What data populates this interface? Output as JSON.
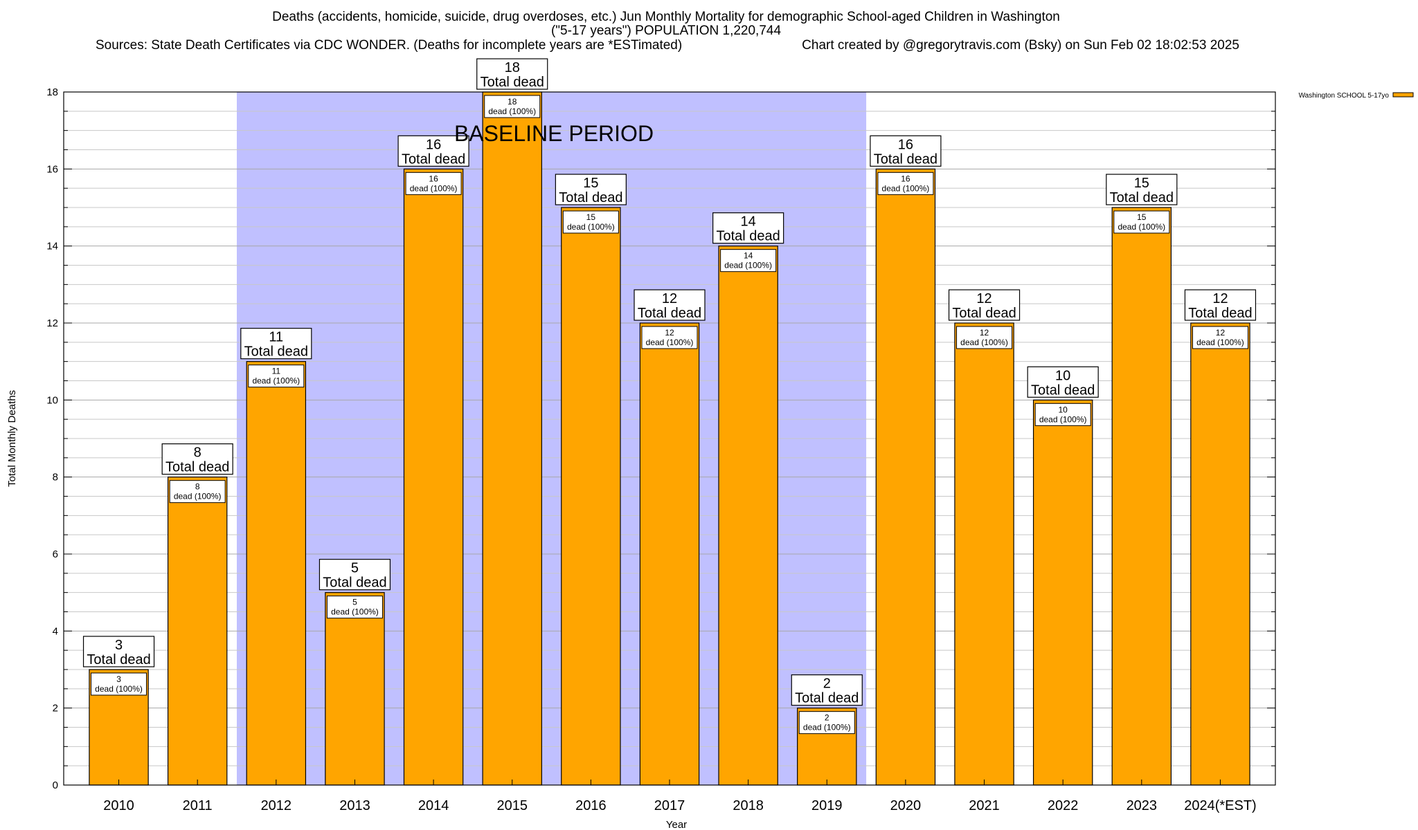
{
  "chart_data": {
    "type": "bar",
    "title_lines": [
      "Deaths (accidents, homicide, suicide, drug overdoses, etc.) Jun Monthly Mortality for demographic School-aged Children in Washington",
      "(\"5-17 years\") POPULATION 1,220,744"
    ],
    "sources": "Sources: State Death Certificates via CDC WONDER. (Deaths for incomplete years are *ESTimated)",
    "credit": "Chart created by @gregorytravis.com (Bsky) on Sun Feb 02 18:02:53 2025",
    "xlabel": "Year",
    "ylabel": "Total Monthly Deaths",
    "ylim": [
      0,
      18
    ],
    "yticks": [
      "0",
      "2",
      "4",
      "6",
      "8",
      "10",
      "12",
      "14",
      "16",
      "18"
    ],
    "categories": [
      "2010",
      "2011",
      "2012",
      "2013",
      "2014",
      "2015",
      "2016",
      "2017",
      "2018",
      "2019",
      "2020",
      "2021",
      "2022",
      "2023",
      "2024(*EST)"
    ],
    "series": [
      {
        "name": "Washington SCHOOL 5-17yo",
        "values": [
          3,
          8,
          11,
          5,
          16,
          18,
          15,
          12,
          14,
          2,
          16,
          12,
          10,
          15,
          12
        ],
        "color": "#ffa500"
      }
    ],
    "total_label_line1": [
      "3",
      "8",
      "11",
      "5",
      "16",
      "18",
      "15",
      "12",
      "14",
      "2",
      "16",
      "12",
      "10",
      "15",
      "12"
    ],
    "total_label_line2": "Total dead",
    "inner_label_line1": [
      "3",
      "8",
      "11",
      "5",
      "16",
      "18",
      "15",
      "12",
      "14",
      "2",
      "16",
      "12",
      "10",
      "15",
      "12"
    ],
    "inner_label_line2": "dead (100%)",
    "baseline": {
      "label": "BASELINE PERIOD",
      "from": "2012",
      "to": "2019",
      "color": "#c0c0ff"
    },
    "legend_position": "top-right",
    "grid": true
  }
}
